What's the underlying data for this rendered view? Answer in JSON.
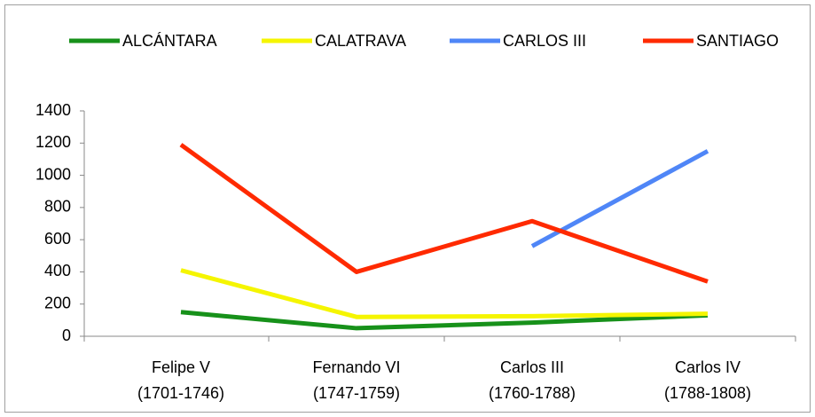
{
  "chart_data": {
    "type": "line",
    "categories": [
      [
        "Felipe V",
        "(1701-1746)"
      ],
      [
        "Fernando VI",
        "(1747-1759)"
      ],
      [
        "Carlos III",
        "(1760-1788)"
      ],
      [
        "Carlos IV",
        "(1788-1808)"
      ]
    ],
    "series": [
      {
        "name": "ALCÁNTARA",
        "color": "#17911a",
        "values": [
          150,
          50,
          85,
          130
        ]
      },
      {
        "name": "CALATRAVA",
        "color": "#f5f500",
        "values": [
          410,
          120,
          125,
          140
        ]
      },
      {
        "name": "CARLOS III",
        "color": "#4f86f7",
        "values": [
          null,
          null,
          560,
          1150
        ]
      },
      {
        "name": "SANTIAGO",
        "color": "#ff2a00",
        "values": [
          1190,
          400,
          715,
          340
        ]
      }
    ],
    "ylim": [
      0,
      1400
    ],
    "yticks": [
      0,
      200,
      400,
      600,
      800,
      1000,
      1200,
      1400
    ],
    "grid": false,
    "legend": "top"
  }
}
